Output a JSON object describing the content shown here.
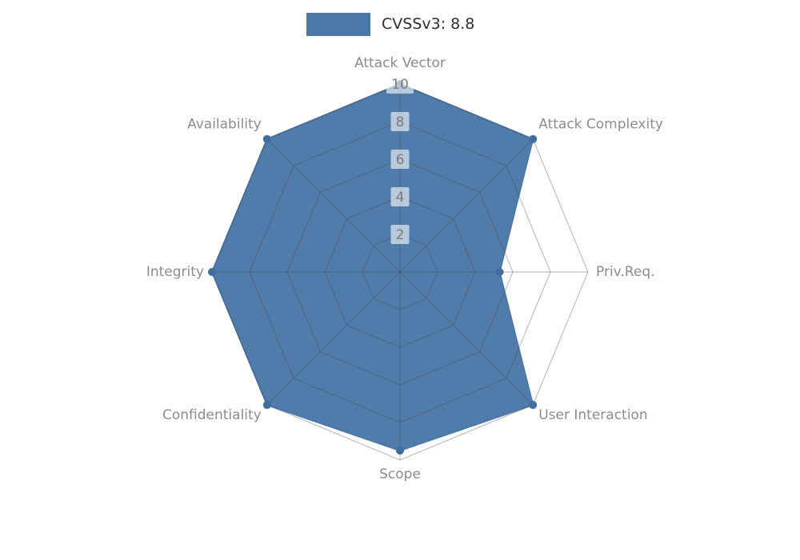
{
  "legend": {
    "label": "CVSSv3: 8.8"
  },
  "chart_data": {
    "type": "radar",
    "title": "CVSSv3: 8.8",
    "categories": [
      "Attack Vector",
      "Attack Complexity",
      "Priv.Req.",
      "User Interaction",
      "Scope",
      "Confidentiality",
      "Integrity",
      "Availability"
    ],
    "series": [
      {
        "name": "CVSSv3: 8.8",
        "values": [
          10,
          10,
          5.3,
          10,
          9.5,
          10,
          10,
          10
        ],
        "color": "#4a78a8",
        "dot_color": "#3f6e9e"
      }
    ],
    "ticks": [
      2,
      4,
      6,
      8,
      10
    ],
    "rlim": [
      0,
      10
    ],
    "grid": true,
    "legend_position": "top",
    "colors": {
      "axis_label": "#8c8c8c",
      "tick_label": "#7b7b7b",
      "grid_line": "rgba(70,70,70,0.4)",
      "tick_bg": "rgba(255,255,255,0.6)"
    }
  }
}
